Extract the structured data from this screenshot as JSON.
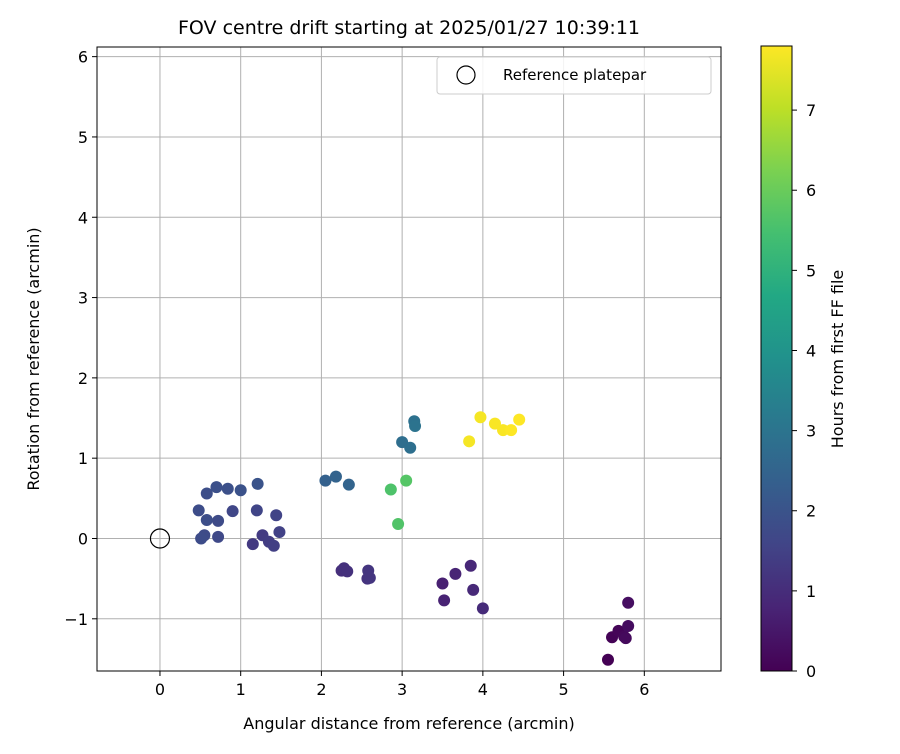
{
  "chart_data": {
    "type": "scatter",
    "title": "FOV centre drift starting at 2025/01/27 10:39:11",
    "xlabel": "Angular distance from reference (arcmin)",
    "ylabel": "Rotation from reference (arcmin)",
    "xlim": [
      -0.78,
      6.95
    ],
    "ylim": [
      -1.65,
      6.12
    ],
    "xticks": [
      "0",
      "1",
      "2",
      "3",
      "4",
      "5",
      "6"
    ],
    "xtick_values": [
      0,
      1,
      2,
      3,
      4,
      5,
      6
    ],
    "yticks": [
      "−1",
      "0",
      "1",
      "2",
      "3",
      "4",
      "5",
      "6"
    ],
    "ytick_values": [
      -1,
      0,
      1,
      2,
      3,
      4,
      5,
      6
    ],
    "grid": true,
    "legend_position": "top-right",
    "legend": [
      {
        "label": "Reference platepar",
        "marker": "open-circle",
        "color": "#000000"
      }
    ],
    "reference_point": {
      "x": 0,
      "y": 0
    },
    "colorbar": {
      "label": "Hours from first FF file",
      "colormap": "viridis",
      "range": [
        0,
        7.8
      ],
      "ticks": [
        "0",
        "1",
        "2",
        "3",
        "4",
        "5",
        "6",
        "7"
      ],
      "tick_values": [
        0,
        1,
        2,
        3,
        4,
        5,
        6,
        7
      ]
    },
    "points": [
      {
        "x": 5.55,
        "y": -1.51,
        "c": 0.0
      },
      {
        "x": 5.6,
        "y": -1.23,
        "c": 0.05
      },
      {
        "x": 5.68,
        "y": -1.15,
        "c": 0.1
      },
      {
        "x": 5.75,
        "y": -1.22,
        "c": 0.15
      },
      {
        "x": 5.77,
        "y": -1.24,
        "c": 0.2
      },
      {
        "x": 5.8,
        "y": -1.09,
        "c": 0.25
      },
      {
        "x": 5.8,
        "y": -0.8,
        "c": 0.3
      },
      {
        "x": 3.5,
        "y": -0.56,
        "c": 0.7
      },
      {
        "x": 3.52,
        "y": -0.77,
        "c": 0.75
      },
      {
        "x": 3.66,
        "y": -0.44,
        "c": 0.8
      },
      {
        "x": 3.85,
        "y": -0.34,
        "c": 0.85
      },
      {
        "x": 3.88,
        "y": -0.64,
        "c": 0.9
      },
      {
        "x": 4.0,
        "y": -0.87,
        "c": 0.95
      },
      {
        "x": 2.25,
        "y": -0.4,
        "c": 1.05
      },
      {
        "x": 2.28,
        "y": -0.37,
        "c": 1.1
      },
      {
        "x": 2.32,
        "y": -0.41,
        "c": 1.1
      },
      {
        "x": 2.57,
        "y": -0.5,
        "c": 1.15
      },
      {
        "x": 2.6,
        "y": -0.49,
        "c": 1.2
      },
      {
        "x": 2.58,
        "y": -0.4,
        "c": 1.2
      },
      {
        "x": 1.15,
        "y": -0.07,
        "c": 1.3
      },
      {
        "x": 1.27,
        "y": 0.04,
        "c": 1.35
      },
      {
        "x": 1.35,
        "y": -0.04,
        "c": 1.4
      },
      {
        "x": 1.41,
        "y": -0.09,
        "c": 1.45
      },
      {
        "x": 1.48,
        "y": 0.08,
        "c": 1.5
      },
      {
        "x": 1.44,
        "y": 0.29,
        "c": 1.55
      },
      {
        "x": 1.2,
        "y": 0.35,
        "c": 1.6
      },
      {
        "x": 0.9,
        "y": 0.34,
        "c": 1.65
      },
      {
        "x": 0.72,
        "y": 0.02,
        "c": 1.7
      },
      {
        "x": 0.72,
        "y": 0.22,
        "c": 1.75
      },
      {
        "x": 0.55,
        "y": 0.04,
        "c": 1.75
      },
      {
        "x": 0.51,
        "y": 0.0,
        "c": 1.8
      },
      {
        "x": 0.48,
        "y": 0.35,
        "c": 1.8
      },
      {
        "x": 0.58,
        "y": 0.23,
        "c": 1.85
      },
      {
        "x": 0.58,
        "y": 0.56,
        "c": 1.85
      },
      {
        "x": 0.7,
        "y": 0.64,
        "c": 1.9
      },
      {
        "x": 0.84,
        "y": 0.62,
        "c": 1.9
      },
      {
        "x": 1.0,
        "y": 0.6,
        "c": 1.95
      },
      {
        "x": 1.21,
        "y": 0.68,
        "c": 2.0
      },
      {
        "x": 2.05,
        "y": 0.72,
        "c": 2.4
      },
      {
        "x": 2.18,
        "y": 0.77,
        "c": 2.45
      },
      {
        "x": 2.34,
        "y": 0.67,
        "c": 2.5
      },
      {
        "x": 3.0,
        "y": 1.2,
        "c": 2.8
      },
      {
        "x": 3.1,
        "y": 1.13,
        "c": 2.85
      },
      {
        "x": 3.15,
        "y": 1.46,
        "c": 2.9
      },
      {
        "x": 3.16,
        "y": 1.4,
        "c": 2.95
      },
      {
        "x": 2.86,
        "y": 0.61,
        "c": 5.6
      },
      {
        "x": 2.95,
        "y": 0.18,
        "c": 5.65
      },
      {
        "x": 3.05,
        "y": 0.72,
        "c": 5.7
      },
      {
        "x": 3.83,
        "y": 1.21,
        "c": 7.7
      },
      {
        "x": 3.97,
        "y": 1.51,
        "c": 7.7
      },
      {
        "x": 4.15,
        "y": 1.43,
        "c": 7.75
      },
      {
        "x": 4.25,
        "y": 1.35,
        "c": 7.75
      },
      {
        "x": 4.35,
        "y": 1.35,
        "c": 7.8
      },
      {
        "x": 4.45,
        "y": 1.48,
        "c": 7.8
      }
    ]
  }
}
